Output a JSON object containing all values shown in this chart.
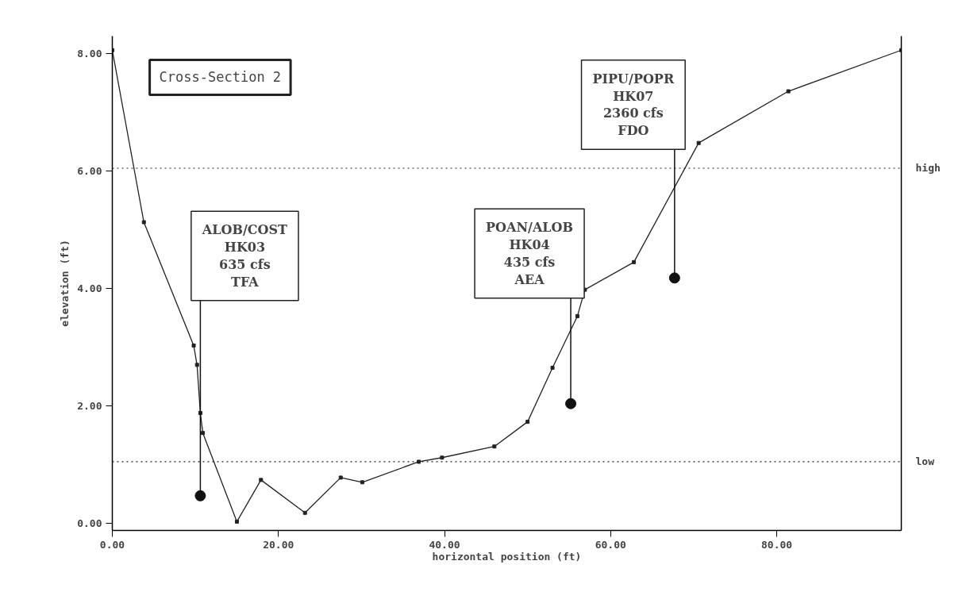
{
  "chart_data": {
    "type": "line",
    "title": "Cross-Section 2",
    "xlabel": "horizontal position (ft)",
    "ylabel": "elevation (ft)",
    "x": [
      0,
      3.8,
      9.8,
      10.2,
      10.6,
      10.9,
      15.0,
      17.9,
      23.2,
      27.5,
      30.1,
      36.9,
      39.7,
      46.0,
      50.0,
      53.0,
      56.0,
      56.9,
      62.8,
      70.6,
      81.4,
      95.0
    ],
    "series": [
      {
        "color": "#222222",
        "values": [
          8.06,
          5.13,
          3.03,
          2.7,
          1.88,
          1.54,
          0.03,
          0.74,
          0.18,
          0.78,
          0.7,
          1.05,
          1.12,
          1.31,
          1.73,
          2.65,
          3.53,
          3.98,
          4.45,
          6.48,
          7.36,
          8.06
        ]
      }
    ],
    "marker": "square",
    "line_style": "solid",
    "grid": false,
    "xlim": [
      0,
      95
    ],
    "ylim": [
      -0.12,
      8.3
    ],
    "xticks": [
      {
        "value": 0,
        "label": "0.00"
      },
      {
        "value": 20,
        "label": "20.00"
      },
      {
        "value": 40,
        "label": "40.00"
      },
      {
        "value": 60,
        "label": "60.00"
      },
      {
        "value": 80,
        "label": "80.00"
      }
    ],
    "yticks": [
      {
        "value": 0,
        "label": "0.00"
      },
      {
        "value": 2,
        "label": "2.00"
      },
      {
        "value": 4,
        "label": "4.00"
      },
      {
        "value": 6,
        "label": "6.00"
      },
      {
        "value": 8,
        "label": "8.00"
      }
    ],
    "ref_lines": [
      {
        "axis": "y",
        "value": 6.05,
        "label": "high",
        "line_style": "dotted"
      },
      {
        "axis": "y",
        "value": 1.05,
        "label": "low",
        "line_style": "dotted"
      }
    ],
    "annotations": [
      {
        "text": "ALOB/COST\nHK03\n635 cfs\nTFA",
        "x": 10.6,
        "y": 0.47
      },
      {
        "text": "POAN/ALOB\nHK04\n435 cfs\nAEA",
        "x": 55.2,
        "y": 2.04
      },
      {
        "text": "PIPU/POPR\nHK07\n2360 cfs\nFDO",
        "x": 67.7,
        "y": 4.18
      }
    ]
  }
}
